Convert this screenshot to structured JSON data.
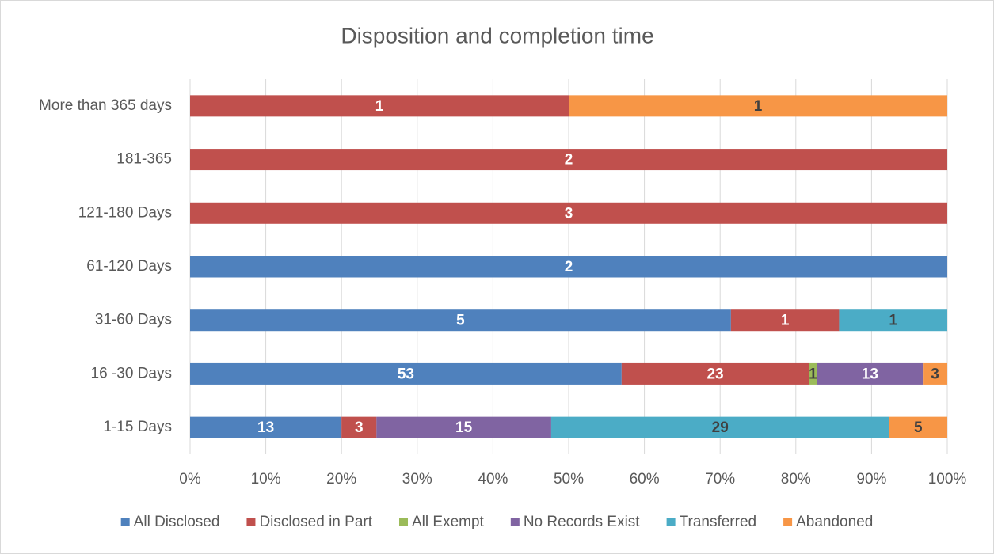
{
  "chart_data": {
    "type": "bar",
    "orientation": "horizontal",
    "stacking": "percent",
    "title": "Disposition and  completion time",
    "categories": [
      "1-15 Days",
      "16 -30 Days",
      "31-60 Days",
      "61-120 Days",
      "121-180 Days",
      "181-365",
      "More than 365 days"
    ],
    "series": [
      {
        "name": "All Disclosed",
        "color": "#4f81bd",
        "label_color": "#ffffff",
        "values": [
          13,
          53,
          5,
          2,
          null,
          null,
          null
        ]
      },
      {
        "name": "Disclosed in Part",
        "color": "#c0504d",
        "label_color": "#ffffff",
        "values": [
          3,
          23,
          1,
          null,
          3,
          2,
          1
        ]
      },
      {
        "name": "All Exempt",
        "color": "#9bbb59",
        "label_color": "#404040",
        "values": [
          null,
          1,
          null,
          null,
          null,
          null,
          null
        ]
      },
      {
        "name": "No Records Exist",
        "color": "#8064a2",
        "label_color": "#ffffff",
        "values": [
          15,
          13,
          null,
          null,
          null,
          null,
          null
        ]
      },
      {
        "name": "Transferred",
        "color": "#4bacc6",
        "label_color": "#404040",
        "values": [
          29,
          null,
          1,
          null,
          null,
          null,
          null
        ]
      },
      {
        "name": "Abandoned",
        "color": "#f79646",
        "label_color": "#404040",
        "values": [
          5,
          3,
          null,
          null,
          null,
          null,
          1
        ]
      }
    ],
    "xlim": [
      0,
      100
    ],
    "xticks": [
      {
        "value": 0,
        "label": "0%"
      },
      {
        "value": 10,
        "label": "10%"
      },
      {
        "value": 20,
        "label": "20%"
      },
      {
        "value": 30,
        "label": "30%"
      },
      {
        "value": 40,
        "label": "40%"
      },
      {
        "value": 50,
        "label": "50%"
      },
      {
        "value": 60,
        "label": "60%"
      },
      {
        "value": 70,
        "label": "70%"
      },
      {
        "value": 80,
        "label": "80%"
      },
      {
        "value": 90,
        "label": "90%"
      },
      {
        "value": 100,
        "label": "100%"
      }
    ],
    "grid": true,
    "legend": "bottom"
  }
}
